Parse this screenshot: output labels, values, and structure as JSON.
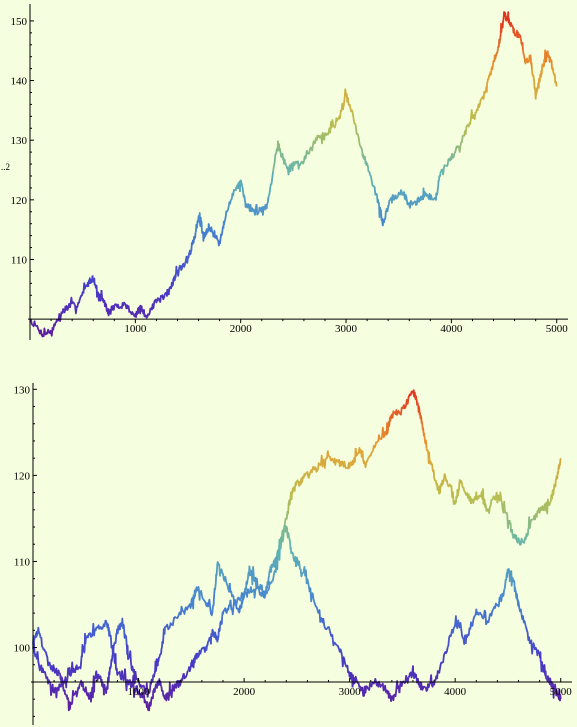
{
  "page": {
    "background": "#f5fede"
  },
  "chart_data": [
    {
      "type": "line",
      "title": "",
      "xlabel": "",
      "ylabel_fragment": "..2",
      "xlim": [
        0,
        5050
      ],
      "ylim": [
        96.5,
        152.5
      ],
      "x_axis_at_y": 100,
      "x_ticks": [
        {
          "value": 1000,
          "label": "1000"
        },
        {
          "value": 2000,
          "label": "2000"
        },
        {
          "value": 3000,
          "label": "3000"
        },
        {
          "value": 4000,
          "label": "4000"
        },
        {
          "value": 5000,
          "label": "5000"
        }
      ],
      "y_ticks": [
        {
          "value": 110,
          "label": "110"
        },
        {
          "value": 120,
          "label": "120"
        },
        {
          "value": 130,
          "label": "130"
        },
        {
          "value": 140,
          "label": "140"
        },
        {
          "value": 150,
          "label": "150"
        }
      ],
      "color_scale": "value (purple low → red high)",
      "series": [
        {
          "x": [
            0,
            120,
            200,
            300,
            350,
            450,
            550,
            600,
            650,
            700,
            750,
            800,
            900,
            1000,
            1050,
            1100,
            1200,
            1300,
            1350,
            1400,
            1500,
            1550,
            1600,
            1650,
            1700,
            1800,
            1850,
            1950,
            2000,
            2050,
            2150,
            2200,
            2250,
            2350,
            2400,
            2450,
            2500,
            2600,
            2700,
            2800,
            2900,
            3000,
            3050,
            3150,
            3200,
            3300,
            3350,
            3400,
            3450,
            3550,
            3600,
            3700,
            3750,
            3850,
            3900,
            4000,
            4100,
            4200,
            4300,
            4350,
            4400,
            4450,
            4500,
            4550,
            4600,
            4650,
            4700,
            4750,
            4800,
            4850,
            4900,
            4950,
            5000
          ],
          "y": [
            100,
            97.5,
            98,
            101,
            102,
            102.5,
            106,
            107,
            104,
            103,
            101,
            102,
            102.5,
            100.5,
            102,
            100.5,
            103,
            104,
            106,
            108,
            110,
            113,
            117,
            114,
            115.5,
            112.5,
            117,
            122,
            123,
            119,
            118,
            118.5,
            119,
            129.5,
            127,
            125,
            126,
            126.5,
            130,
            131,
            132.5,
            137.5,
            135,
            128,
            126,
            120,
            116,
            119,
            120.5,
            121,
            119,
            120,
            121,
            120,
            125,
            127,
            130,
            134,
            137,
            140,
            143,
            146,
            151,
            150,
            148,
            147.5,
            143,
            144,
            137.5,
            141,
            144.5,
            143,
            139
          ]
        }
      ]
    },
    {
      "type": "line",
      "title": "",
      "xlabel": "",
      "ylabel": "",
      "xlim": [
        0,
        5050
      ],
      "ylim": [
        91,
        130.5
      ],
      "x_axis_at_y": 96,
      "x_ticks": [
        {
          "value": 1000,
          "label": "1000"
        },
        {
          "value": 2000,
          "label": "2000"
        },
        {
          "value": 3000,
          "label": "3000"
        },
        {
          "value": 4000,
          "label": "4000"
        },
        {
          "value": 5000,
          "label": "5000"
        }
      ],
      "y_ticks": [
        {
          "value": 100,
          "label": "100"
        },
        {
          "value": 110,
          "label": "110"
        },
        {
          "value": 120,
          "label": "120"
        },
        {
          "value": 130,
          "label": "130"
        }
      ],
      "color_scale": "value (purple low → red high)",
      "series": [
        {
          "x": [
            0,
            50,
            150,
            250,
            300,
            350,
            450,
            550,
            600,
            650,
            700,
            750,
            800,
            850,
            900,
            1000,
            1100,
            1150,
            1200,
            1250,
            1400,
            1500,
            1550,
            1600,
            1700,
            1750,
            1850,
            1950,
            2000,
            2050,
            2150,
            2200,
            2250,
            2300,
            2400,
            2450,
            2500,
            2600,
            2700,
            2800,
            2900,
            3000,
            3100,
            3150,
            3250,
            3350,
            3400,
            3500,
            3600,
            3650,
            3700,
            3750,
            3800,
            3850,
            3900,
            4000,
            4050,
            4150,
            4250,
            4300,
            4400,
            4500,
            4550,
            4650,
            4700,
            4800,
            4900,
            4950,
            5000
          ],
          "y": [
            101,
            102,
            98,
            97,
            95,
            93,
            96,
            94,
            97,
            96,
            95,
            99,
            102,
            103,
            99,
            96,
            95,
            97,
            99,
            102,
            104,
            105,
            107,
            106,
            104,
            110,
            107,
            104,
            106,
            109,
            107,
            106,
            109,
            110,
            115,
            118,
            119,
            120,
            121,
            122,
            121.5,
            121,
            123,
            121,
            124,
            125,
            127,
            127.5,
            130,
            128,
            125,
            122,
            120,
            118,
            120,
            117,
            119,
            117,
            118,
            116,
            118,
            115,
            113,
            112,
            114,
            116,
            117,
            119,
            122
          ]
        },
        {
          "x": [
            0,
            100,
            200,
            300,
            350,
            450,
            500,
            600,
            700,
            750,
            800,
            900,
            1000,
            1050,
            1100,
            1150,
            1200,
            1250,
            1300,
            1400,
            1500,
            1550,
            1650,
            1700,
            1750,
            1800,
            1900,
            2000,
            2100,
            2200,
            2300,
            2350,
            2400,
            2450,
            2550,
            2650,
            2750,
            2900,
            3000,
            3050,
            3150,
            3250,
            3350,
            3400,
            3500,
            3600,
            3650,
            3700,
            3800,
            3900,
            4000,
            4100,
            4200,
            4300,
            4400,
            4450,
            4500,
            4550,
            4600,
            4700,
            4800,
            4850,
            4900,
            4950,
            5000
          ],
          "y": [
            100,
            97,
            95,
            96,
            97,
            98,
            101,
            102,
            103,
            100,
            97,
            96,
            95,
            94,
            93,
            95,
            96,
            94,
            95,
            96,
            98,
            99,
            100,
            102,
            101,
            104,
            105,
            106,
            107,
            106,
            109,
            112,
            114,
            111,
            109,
            106,
            103,
            100,
            97,
            96,
            95,
            96,
            95,
            94,
            96,
            97,
            96,
            95,
            96,
            99,
            103,
            101,
            104,
            103,
            105,
            106,
            109,
            108,
            105,
            101,
            99,
            97,
            96,
            95,
            94
          ]
        }
      ]
    }
  ]
}
